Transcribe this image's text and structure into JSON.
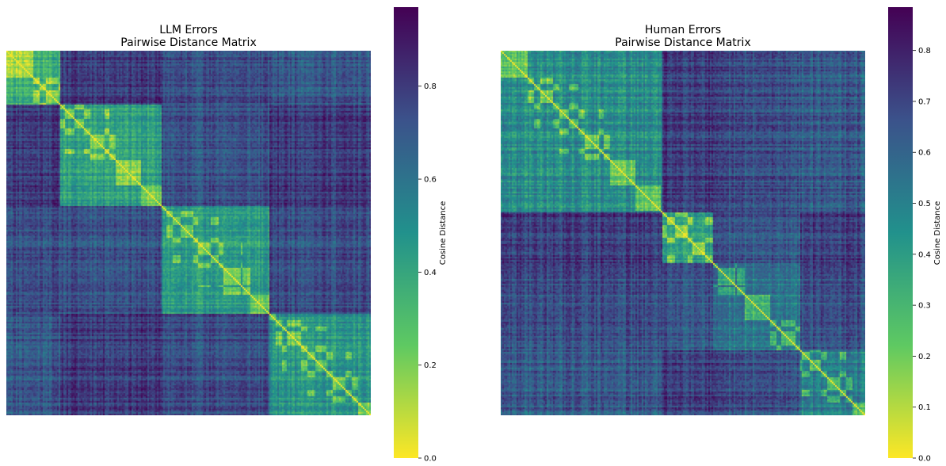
{
  "chart_data": [
    {
      "type": "heatmap",
      "title": "LLM Errors\nPairwise Distance Matrix",
      "colormap": "viridis_r",
      "colorbar_label": "Cosine Distance",
      "vmin": 0.0,
      "vmax": 0.97,
      "colorbar_ticks": [
        0.0,
        0.2,
        0.4,
        0.6,
        0.8
      ],
      "xlabel": "",
      "ylabel": "",
      "clusters": [
        {
          "start": 0.0,
          "end": 0.145,
          "within": 0.32
        },
        {
          "start": 0.145,
          "end": 0.425,
          "within": 0.38
        },
        {
          "start": 0.425,
          "end": 0.72,
          "within": 0.4
        },
        {
          "start": 0.72,
          "end": 1.0,
          "within": 0.42
        }
      ],
      "between": 0.76,
      "diagonal": 0.0
    },
    {
      "type": "heatmap",
      "title": "Human Errors\nPairwise Distance Matrix",
      "colormap": "viridis_r",
      "colorbar_label": "Cosine Distance",
      "vmin": 0.0,
      "vmax": 0.885,
      "colorbar_ticks": [
        0.0,
        0.1,
        0.2,
        0.3,
        0.4,
        0.5,
        0.6,
        0.7,
        0.8
      ],
      "xlabel": "",
      "ylabel": "",
      "clusters": [
        {
          "start": 0.0,
          "end": 0.44,
          "within": 0.4
        },
        {
          "start": 0.44,
          "end": 0.58,
          "within": 0.36
        },
        {
          "start": 0.58,
          "end": 0.82,
          "within": 0.48
        },
        {
          "start": 0.82,
          "end": 1.0,
          "within": 0.46
        }
      ],
      "between": 0.68,
      "diagonal": 0.0
    }
  ]
}
